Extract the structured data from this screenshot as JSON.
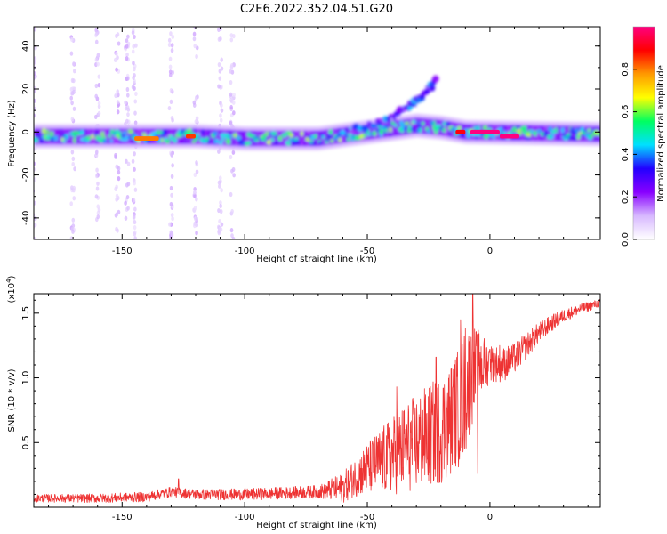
{
  "figure_title": "C2E6.2022.352.04.51.G20",
  "chart_data": [
    {
      "type": "heatmap",
      "title": "",
      "xlabel": "Height of straight line (km)",
      "ylabel": "Frequency (Hz)",
      "xlim": [
        -186,
        45
      ],
      "ylim": [
        -50,
        49
      ],
      "xticks": [
        -150,
        -100,
        -50,
        0
      ],
      "xtick_labels": [
        "-150",
        "-100",
        "-50",
        "0"
      ],
      "yticks": [
        -40,
        -20,
        0,
        20,
        40
      ],
      "ytick_labels": [
        "-40",
        "-20",
        "0",
        "20",
        "40"
      ],
      "grid": false,
      "colorbar": {
        "label": "Normalized spectral amplitude",
        "range": [
          0,
          1
        ],
        "ticks": [
          0.0,
          0.2,
          0.4,
          0.6,
          0.8
        ],
        "tick_labels": [
          "0.0",
          "0.2",
          "0.4",
          "0.6",
          "0.8"
        ],
        "colormap": [
          "#ffffff",
          "#d7b8ff",
          "#8800ff",
          "#2200ff",
          "#00e0ff",
          "#00ff60",
          "#ffff00",
          "#ff9900",
          "#ff0000",
          "#ff0080"
        ]
      },
      "main_band": {
        "center_hz": [
          [
            -186,
            -2
          ],
          [
            -120,
            -2
          ],
          [
            -100,
            -3
          ],
          [
            -70,
            -3
          ],
          [
            -50,
            0
          ],
          [
            -30,
            3
          ],
          [
            -20,
            2
          ],
          [
            -10,
            0
          ],
          [
            45,
            -1
          ]
        ],
        "half_width_hz": 5,
        "peak_segments": [
          {
            "x": [
              -8,
              4
            ],
            "y": 0,
            "amplitude": 1.0
          },
          {
            "x": [
              4,
              12
            ],
            "y": -2,
            "amplitude": 1.0
          },
          {
            "x": [
              -14,
              -10
            ],
            "y": 0,
            "amplitude": 0.9
          },
          {
            "x": [
              -124,
              -120
            ],
            "y": -2,
            "amplitude": 0.85
          },
          {
            "x": [
              -145,
              -135
            ],
            "y": -3,
            "amplitude": 0.8
          }
        ]
      },
      "side_branch": {
        "points": [
          [
            -60,
            0
          ],
          [
            -45,
            5
          ],
          [
            -35,
            10
          ],
          [
            -30,
            14
          ],
          [
            -25,
            20
          ],
          [
            -22,
            24
          ]
        ],
        "amplitude": 0.45
      },
      "faint_streaks_x": [
        -186,
        -170,
        -160,
        -152,
        -148,
        -145,
        -130,
        -120,
        -110,
        -105
      ]
    },
    {
      "type": "line",
      "title": "",
      "xlabel": "Height of straight line (km)",
      "ylabel": "SNR (10 * v/v)",
      "y_multiplier_label": "(x10",
      "y_multiplier_exponent": "4",
      "y_multiplier_close": ")",
      "xlim": [
        -186,
        45
      ],
      "ylim": [
        0,
        16500
      ],
      "xticks": [
        -150,
        -100,
        -50,
        0
      ],
      "xtick_labels": [
        "-150",
        "-100",
        "-50",
        "0"
      ],
      "yticks": [
        5000,
        10000,
        15000
      ],
      "ytick_labels": [
        "0.5",
        "1.0",
        "1.5"
      ],
      "grid": false,
      "series": [
        {
          "color": "#ee3333",
          "envelope": {
            "x": [
              -186,
              -160,
              -140,
              -130,
              -120,
              -100,
              -85,
              -70,
              -60,
              -55,
              -50,
              -45,
              -40,
              -35,
              -30,
              -25,
              -20,
              -15,
              -12,
              -10,
              -8,
              -5,
              0,
              5,
              10,
              15,
              20,
              25,
              30,
              35,
              40,
              45
            ],
            "y": [
              700,
              700,
              800,
              1200,
              1000,
              1000,
              1100,
              1200,
              1500,
              2300,
              3000,
              3500,
              4000,
              4500,
              5000,
              5500,
              6000,
              7000,
              8000,
              9000,
              10000,
              10800,
              11200,
              11000,
              11500,
              12500,
              13500,
              14200,
              14800,
              15200,
              15500,
              15800
            ]
          },
          "noise_amplitude": {
            "x": [
              -186,
              -70,
              -55,
              -45,
              -35,
              -25,
              -15,
              -10,
              -5,
              0,
              10,
              20,
              30,
              45
            ],
            "y": [
              300,
              500,
              1500,
              2500,
              3500,
              4000,
              4500,
              5000,
              3000,
              1500,
              1200,
              800,
              500,
              300
            ]
          },
          "peaks": [
            {
              "x": -127,
              "y": 2200
            },
            {
              "x": -38,
              "y": 9300
            },
            {
              "x": -22,
              "y": 11600
            },
            {
              "x": -12,
              "y": 14500
            },
            {
              "x": -10,
              "y": 13800
            },
            {
              "x": -7,
              "y": 16500
            },
            {
              "x": -5,
              "y": 2600
            },
            {
              "x": -4,
              "y": 12000
            },
            {
              "x": 0,
              "y": 12200
            },
            {
              "x": 4,
              "y": 12500
            }
          ]
        }
      ]
    }
  ]
}
